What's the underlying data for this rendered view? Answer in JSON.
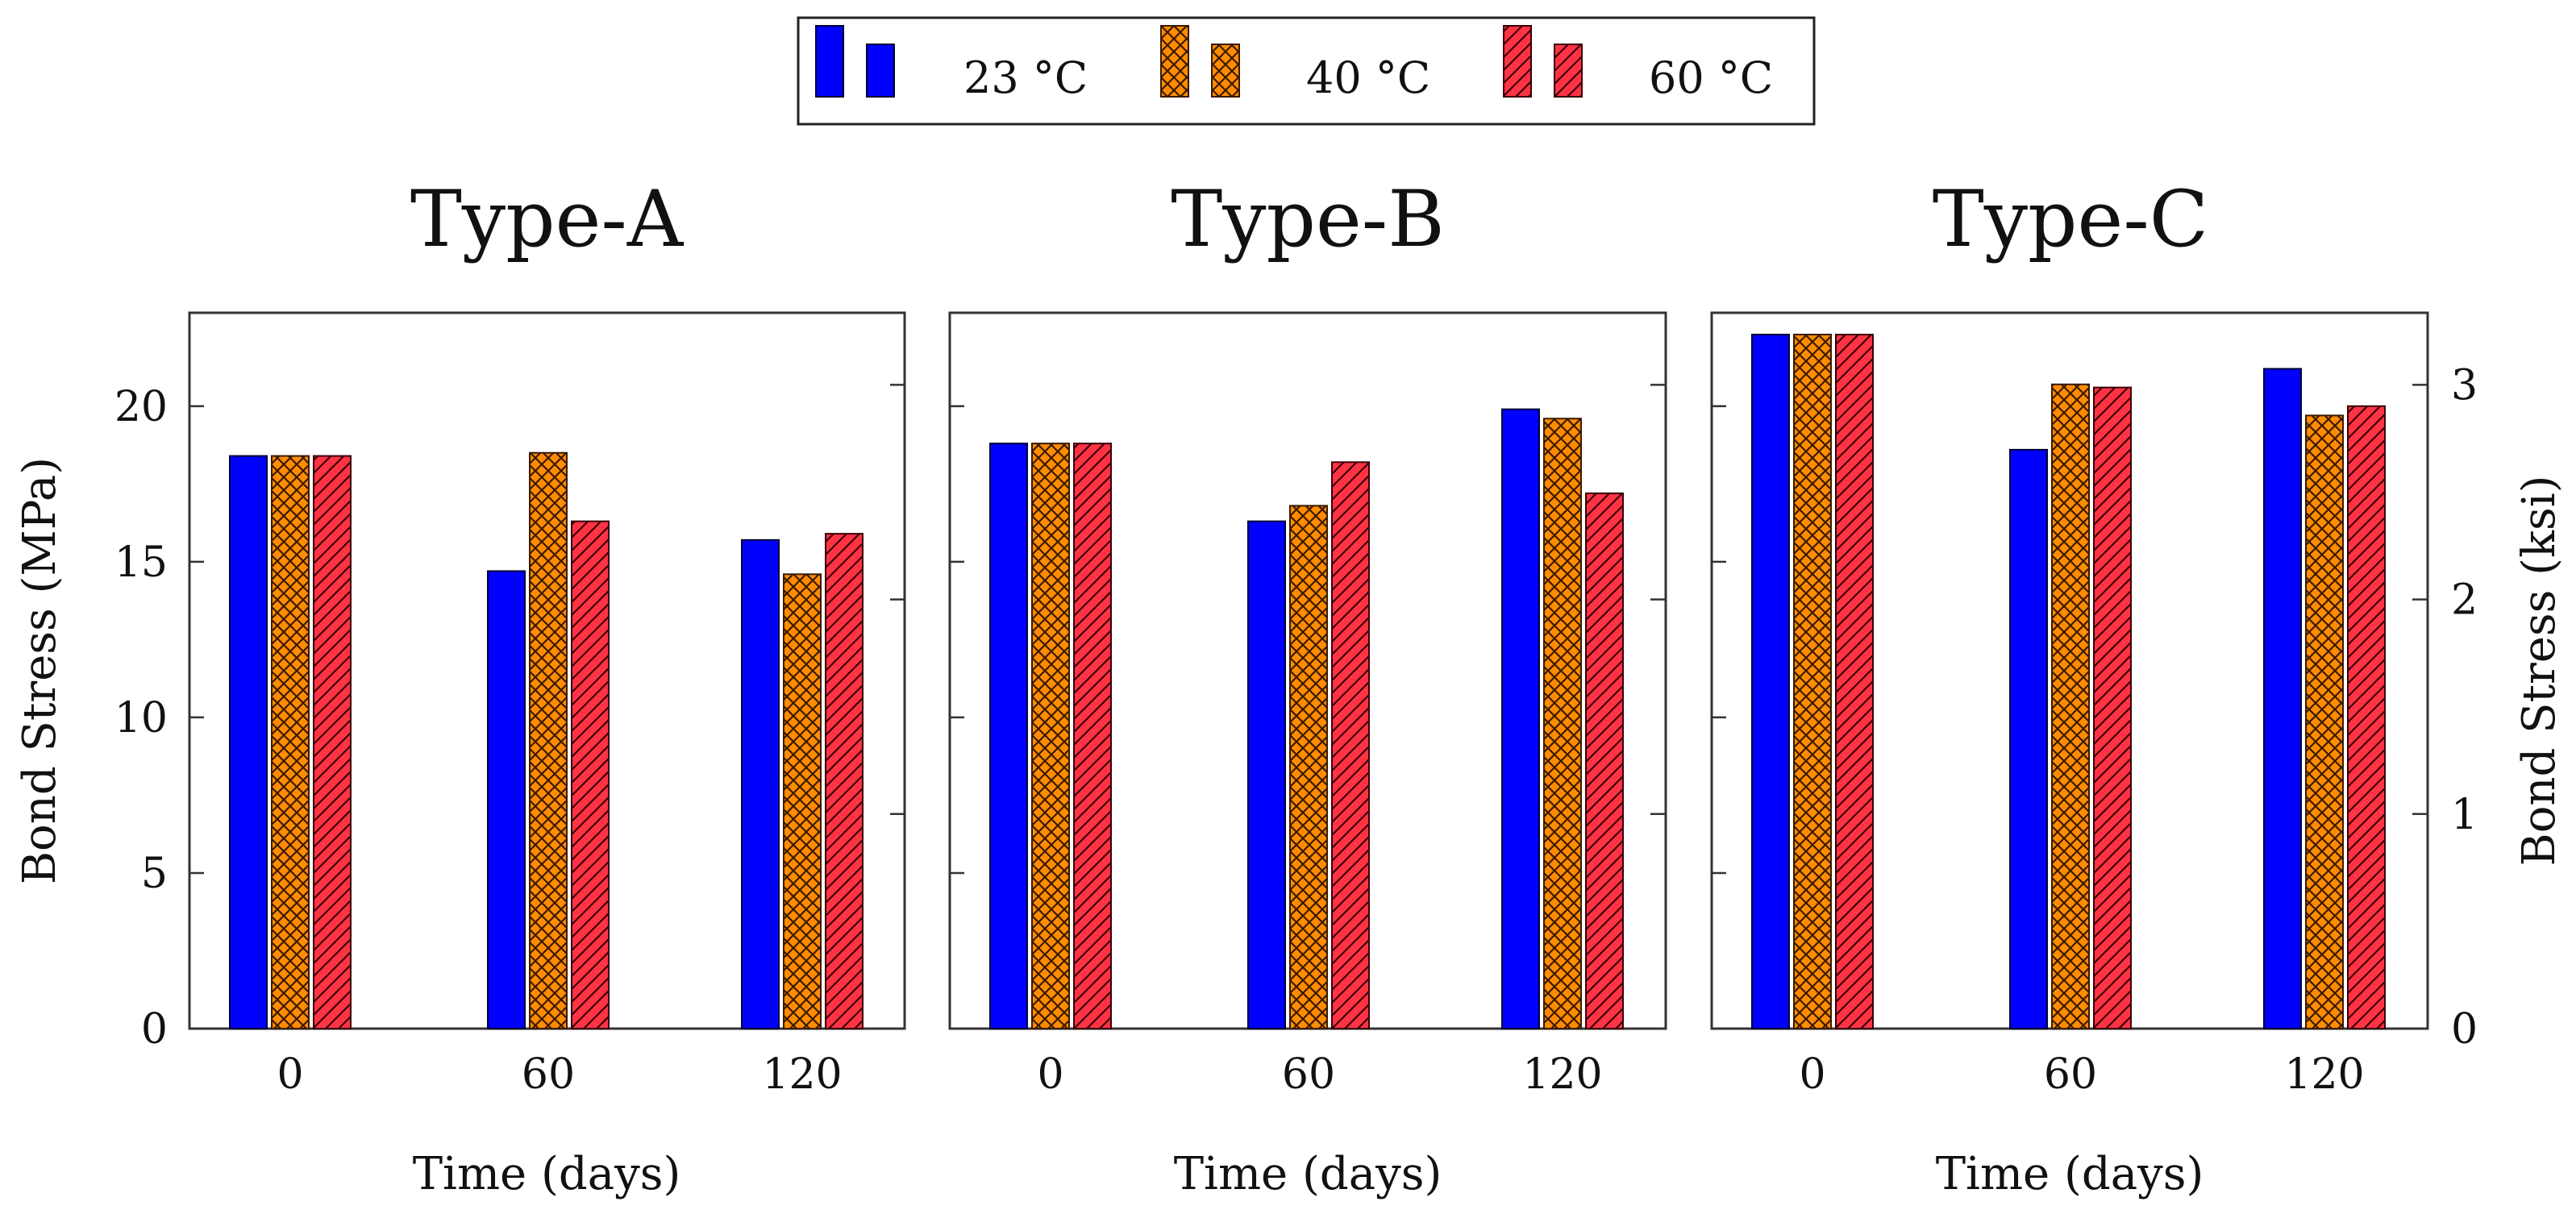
{
  "chart_data": {
    "type": "bar",
    "categories": [
      "0",
      "60",
      "120"
    ],
    "xlabel": "Time (days)",
    "ylabel_left": "Bond Stress (MPa)",
    "ylabel_right": "Bond Stress (ksi)",
    "ylim": [
      0,
      23
    ],
    "yticks": [
      0,
      5,
      10,
      15,
      20
    ],
    "yticks_right": [
      0,
      1,
      2,
      3
    ],
    "legend": {
      "position": "top-center",
      "entries": [
        {
          "label": "23 °C",
          "color": "#0000ff",
          "pattern": "solid"
        },
        {
          "label": "40 °C",
          "color": "#ff8c00",
          "pattern": "crosshatch"
        },
        {
          "label": "60 °C",
          "color": "#ff3344",
          "pattern": "diagonal"
        }
      ]
    },
    "panels": [
      {
        "title": "Type-A",
        "series": [
          {
            "name": "23 °C",
            "values": [
              18.4,
              14.7,
              15.7
            ]
          },
          {
            "name": "40 °C",
            "values": [
              18.4,
              18.5,
              14.6
            ]
          },
          {
            "name": "60 °C",
            "values": [
              18.4,
              16.3,
              15.9
            ]
          }
        ]
      },
      {
        "title": "Type-B",
        "series": [
          {
            "name": "23 °C",
            "values": [
              18.8,
              16.3,
              19.9
            ]
          },
          {
            "name": "40 °C",
            "values": [
              18.8,
              16.8,
              19.6
            ]
          },
          {
            "name": "60 °C",
            "values": [
              18.8,
              18.2,
              17.2
            ]
          }
        ]
      },
      {
        "title": "Type-C",
        "series": [
          {
            "name": "23 °C",
            "values": [
              22.3,
              18.6,
              21.2
            ]
          },
          {
            "name": "40 °C",
            "values": [
              22.3,
              20.7,
              19.7
            ]
          },
          {
            "name": "60 °C",
            "values": [
              22.3,
              20.6,
              20.0
            ]
          }
        ]
      }
    ]
  }
}
